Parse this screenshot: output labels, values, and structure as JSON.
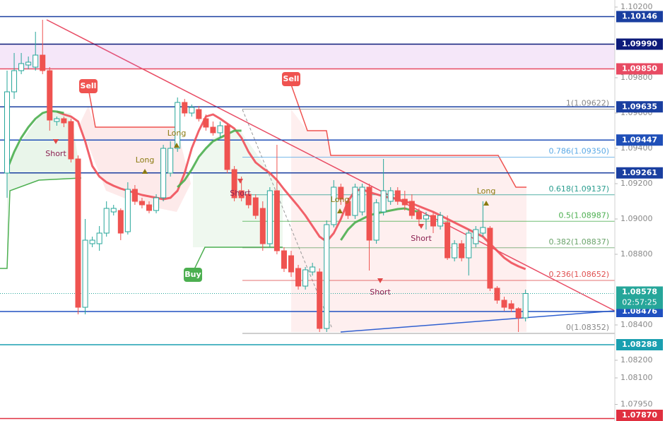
{
  "chart_data": {
    "type": "candlestick",
    "ylim": [
      1.07856,
      1.1024
    ],
    "yticks": [
      {
        "value": 1.102,
        "label": "1.10200"
      },
      {
        "value": 1.098,
        "label": "1.09800"
      },
      {
        "value": 1.096,
        "label": "1.09600"
      },
      {
        "value": 1.094,
        "label": "1.09400"
      },
      {
        "value": 1.092,
        "label": "1.09200"
      },
      {
        "value": 1.09,
        "label": "1.09000"
      },
      {
        "value": 1.088,
        "label": "1.08800"
      },
      {
        "value": 1.084,
        "label": "1.08400"
      },
      {
        "value": 1.082,
        "label": "1.08200"
      },
      {
        "value": 1.081,
        "label": "1.08100"
      },
      {
        "value": 1.0795,
        "label": "1.07950"
      }
    ],
    "up_color": "#26a69a",
    "down_color": "#ef5350",
    "open": [
      1.0926,
      1.0972,
      1.0984,
      1.09872,
      1.0986,
      1.09928,
      1.0984,
      1.09552,
      1.09568,
      1.09552,
      1.0934,
      1.085,
      1.0886,
      1.0886,
      1.0892,
      1.0904,
      1.09048,
      1.08928,
      1.09168,
      1.091,
      1.0908,
      1.09048,
      1.0912,
      1.0926,
      1.094,
      1.0966,
      1.096,
      1.0962,
      1.09568,
      1.0952,
      1.09488,
      1.09528,
      1.0928,
      1.0916,
      1.0914,
      1.0912,
      1.0906,
      1.0886,
      1.0916,
      1.0882,
      1.08792,
      1.0872,
      1.0862,
      1.087,
      1.087,
      1.0838,
      1.08968,
      1.0918,
      1.091,
      1.0902,
      1.0904,
      1.0918,
      1.0888,
      1.0904,
      1.091,
      1.0916,
      1.09112,
      1.091,
      1.0904,
      1.09,
      1.0902,
      1.0896,
      1.0898,
      1.0878,
      1.0886,
      1.0878,
      1.0886,
      1.0892,
      1.08948,
      1.08608,
      1.0854,
      1.0852,
      1.08492,
      1.0844
    ],
    "high": [
      1.0984,
      1.0994,
      1.0994,
      1.0992,
      1.1006,
      1.10128,
      1.0986,
      1.0958,
      1.0958,
      1.09568,
      1.0936,
      1.09,
      1.089,
      1.0896,
      1.091,
      1.0908,
      1.0906,
      1.09208,
      1.09192,
      1.0912,
      1.091,
      1.0914,
      1.0942,
      1.0944,
      1.09688,
      1.0968,
      1.09648,
      1.0964,
      1.09592,
      1.09552,
      1.09552,
      1.0954,
      1.093,
      1.0924,
      1.09168,
      1.0914,
      1.091,
      1.0918,
      1.0942,
      1.0884,
      1.0882,
      1.0874,
      1.08728,
      1.08752,
      1.0872,
      1.08992,
      1.0922,
      1.092,
      1.0912,
      1.092,
      1.092,
      1.092,
      1.09112,
      1.0934,
      1.0918,
      1.0918,
      1.0916,
      1.0914,
      1.0906,
      1.0904,
      1.0904,
      1.0904,
      1.0902,
      1.0888,
      1.0888,
      1.0894,
      1.0896,
      1.091,
      1.0896,
      1.0862,
      1.0856,
      1.0854,
      1.085,
      1.086
    ],
    "low": [
      1.0912,
      1.0968,
      1.0982,
      1.09848,
      1.0984,
      1.0982,
      1.095,
      1.09528,
      1.0952,
      1.0932,
      1.0846,
      1.0846,
      1.0884,
      1.0882,
      1.089,
      1.0902,
      1.0888,
      1.08912,
      1.0908,
      1.0906,
      1.09032,
      1.09032,
      1.091,
      1.0924,
      1.0938,
      1.0958,
      1.0958,
      1.09552,
      1.095,
      1.09472,
      1.0946,
      1.0926,
      1.091,
      1.091,
      1.0906,
      1.09,
      1.0882,
      1.0884,
      1.088,
      1.087,
      1.08672,
      1.086,
      1.086,
      1.0868,
      1.0836,
      1.0836,
      1.08952,
      1.0908,
      1.09,
      1.09,
      1.0902,
      1.08708,
      1.0886,
      1.0902,
      1.0908,
      1.0908,
      1.09048,
      1.09,
      1.0896,
      1.0894,
      1.0892,
      1.0894,
      1.08768,
      1.0876,
      1.0876,
      1.0868,
      1.0884,
      1.089,
      1.08592,
      1.0852,
      1.0848,
      1.08472,
      1.0836,
      1.0842
    ],
    "close": [
      1.0972,
      1.0984,
      1.0988,
      1.09888,
      1.09928,
      1.0984,
      1.0956,
      1.09568,
      1.09544,
      1.0934,
      1.085,
      1.0888,
      1.0888,
      1.0892,
      1.0906,
      1.0906,
      1.0892,
      1.09168,
      1.091,
      1.0908,
      1.09048,
      1.0912,
      1.094,
      1.094,
      1.0966,
      1.096,
      1.09632,
      1.09568,
      1.0952,
      1.09488,
      1.09528,
      1.0928,
      1.0912,
      1.0912,
      1.0908,
      1.0902,
      1.0886,
      1.0916,
      1.0882,
      1.0872,
      1.087,
      1.0862,
      1.08712,
      1.08728,
      1.0838,
      1.08968,
      1.0918,
      1.09112,
      1.0902,
      1.0918,
      1.0918,
      1.0888,
      1.09092,
      1.0916,
      1.0916,
      1.091,
      1.0908,
      1.0902,
      1.09,
      1.0902,
      1.0896,
      1.0902,
      1.0878,
      1.0886,
      1.0878,
      1.0892,
      1.0894,
      1.08952,
      1.08608,
      1.0854,
      1.085,
      1.08492,
      1.0844,
      1.08578
    ],
    "lines": [
      {
        "color": "#f0505a",
        "values": [
          null,
          null,
          null,
          null,
          null,
          null,
          null,
          1.09608,
          1.09592,
          1.0958,
          1.09552,
          1.0944,
          1.093,
          1.0924,
          1.09208,
          1.09188,
          1.09172,
          1.0916,
          1.09148,
          1.09136,
          1.09128,
          1.0912,
          1.09112,
          1.0912,
          1.0916,
          1.0926,
          1.094,
          1.095,
          1.0958,
          1.09592,
          1.09568,
          1.0954,
          1.09512,
          1.0946,
          1.0938,
          1.0932,
          1.09288,
          1.0926,
          1.0922,
          1.09168,
          1.0912,
          1.09072,
          1.0902,
          1.0896,
          1.089,
          1.08872,
          1.0892,
          1.09,
          1.091,
          1.0916,
          1.09168,
          1.09152,
          1.0914,
          1.09128,
          1.0912,
          1.09112,
          1.091,
          1.09088,
          1.09072,
          1.09056,
          1.0904,
          1.0902,
          1.09,
          1.0898,
          1.0896,
          1.0894,
          1.0892,
          1.089,
          1.0886,
          1.0882,
          1.0878,
          1.08752,
          1.08732,
          1.08716
        ]
      },
      {
        "color": "#4caf50",
        "values": [
          1.0928,
          1.0938,
          1.0946,
          1.0952,
          1.09568,
          1.096,
          1.09612,
          1.09608,
          1.096,
          null,
          null,
          null,
          null,
          null,
          null,
          null,
          null,
          null,
          null,
          null,
          null,
          null,
          null,
          null,
          1.0918,
          1.0922,
          1.0928,
          1.09352,
          1.094,
          1.0944,
          1.0946,
          1.0948,
          1.095,
          1.095,
          null,
          null,
          null,
          null,
          null,
          null,
          null,
          null,
          null,
          null,
          null,
          null,
          null,
          1.0888,
          1.0894,
          1.0898,
          1.09,
          1.0902,
          1.09032,
          1.0904,
          1.09048,
          1.09056,
          1.0906,
          1.09048,
          1.0904,
          null,
          null,
          null,
          null,
          null,
          null,
          null,
          null,
          null,
          null,
          null,
          null,
          null,
          null,
          null
        ]
      }
    ],
    "levels": [
      {
        "value": 1.10146,
        "color": "#1a3fa0"
      },
      {
        "value": 1.0999,
        "label": "1.09990",
        "color": "#0d1b7a"
      },
      {
        "value": 1.0985,
        "label": "1.09850",
        "color": "#e84b63"
      },
      {
        "value": 1.09635,
        "color": "#1a3fa0"
      },
      {
        "value": 1.09447,
        "color": "#1f4fb8"
      },
      {
        "value": 1.09261,
        "color": "#1a3fa0"
      },
      {
        "value": 1.08476,
        "color": "#2050c0"
      },
      {
        "value": 1.08288,
        "color": "#1a9fb0"
      },
      {
        "value": 1.0787,
        "label": "1.07870",
        "color": "#e03040"
      }
    ],
    "fib": [
      {
        "value": 1.09622,
        "label": "1(1.09622)",
        "color": "#888888"
      },
      {
        "value": 1.0935,
        "label": "0.786(1.09350)",
        "color": "#5aa9e6"
      },
      {
        "value": 1.09137,
        "label": "0.618(1.09137)",
        "color": "#2a9d8f"
      },
      {
        "value": 1.08987,
        "label": "0.5(1.08987)",
        "color": "#4caf50"
      },
      {
        "value": 1.08837,
        "label": "0.382(1.08837)",
        "color": "#6aa36a"
      },
      {
        "value": 1.08652,
        "label": "0.236(1.08652)",
        "color": "#e05050"
      },
      {
        "value": 1.08352,
        "label": "0(1.08352)",
        "color": "#888888"
      }
    ],
    "current": {
      "value": 1.08578,
      "countdown": "02:57:25",
      "color": "#26a69a"
    },
    "signals": [
      "Short",
      "Long",
      "Long",
      "Short",
      "Long",
      "Short",
      "Short",
      "Long"
    ],
    "badges": [
      "Sell",
      "Sell",
      "Buy"
    ]
  }
}
